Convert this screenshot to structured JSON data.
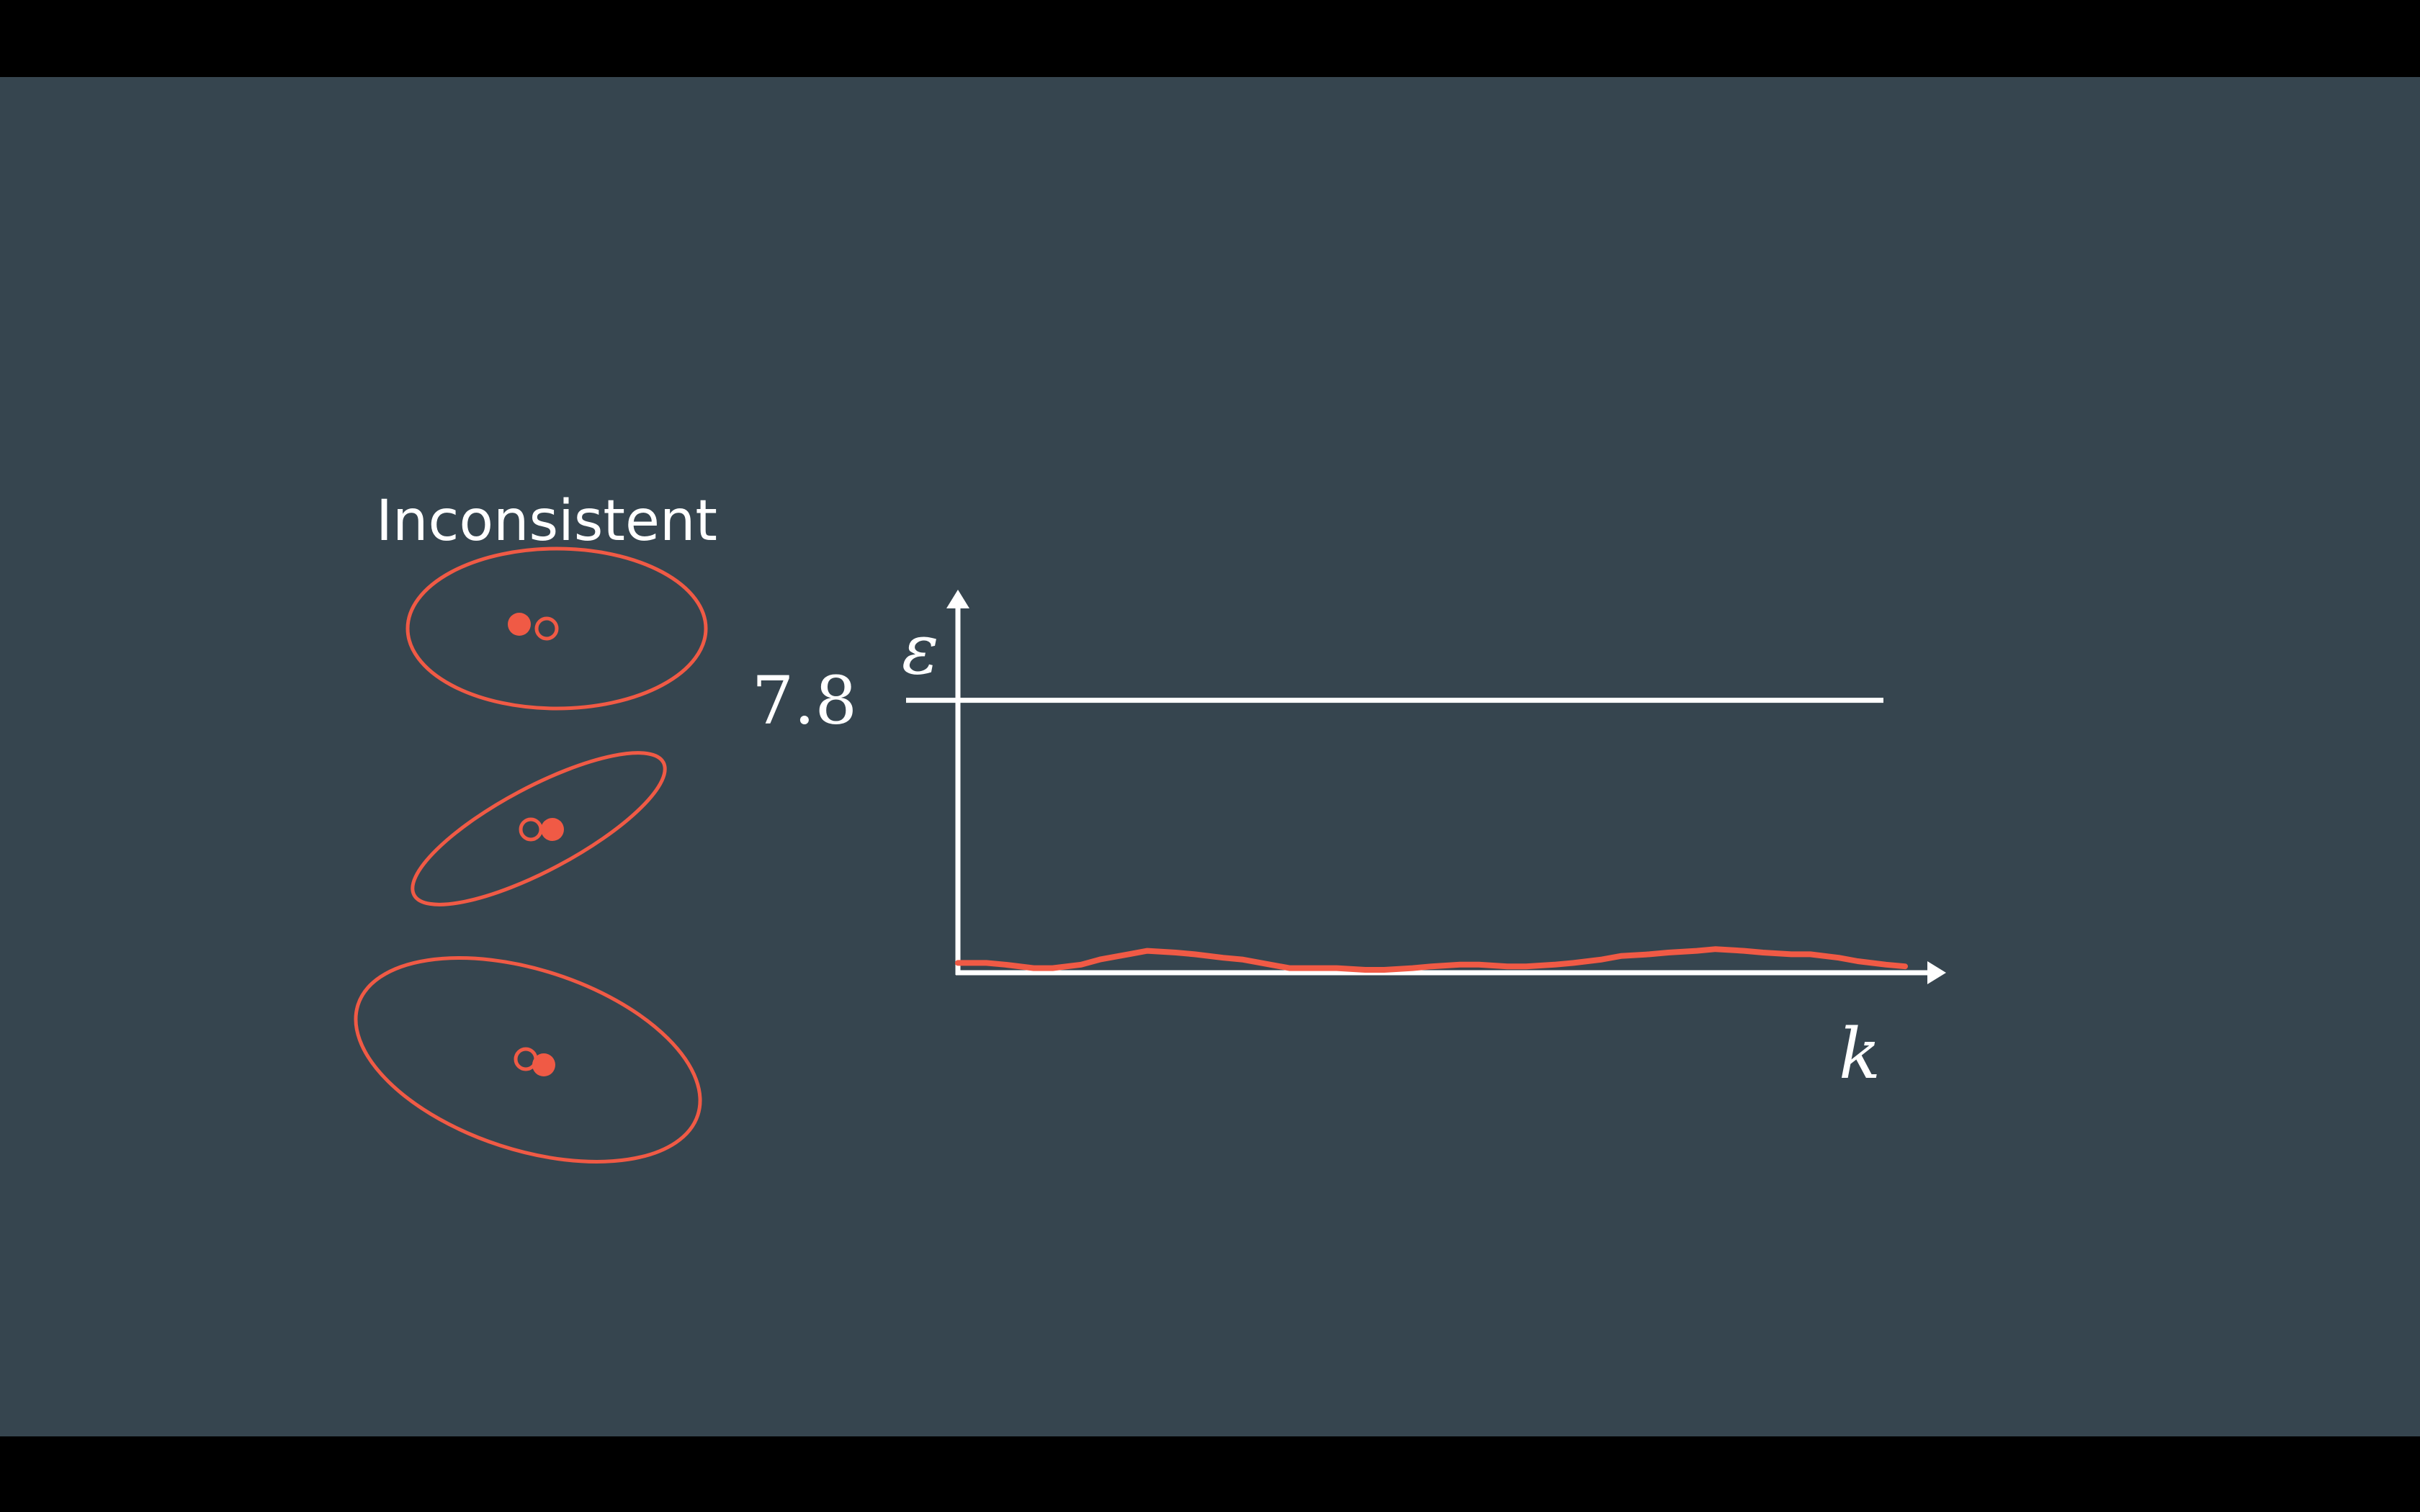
{
  "colors": {
    "background": "#36454f",
    "letterbox": "#000000",
    "accent": "#f05a45",
    "axis": "#ffffff",
    "text": "#ffffff"
  },
  "slide": {
    "heading": "Inconsistent"
  },
  "ellipses": [
    {
      "name": "ellipse-horizontal",
      "shape": "horizontal"
    },
    {
      "name": "ellipse-tilted-narrow",
      "shape": "tilted-narrow"
    },
    {
      "name": "ellipse-tilted-wide",
      "shape": "tilted-wide"
    }
  ],
  "chart_data": {
    "type": "line",
    "ylabel": "ε",
    "xlabel": "k",
    "ylim": [
      0,
      10
    ],
    "threshold": {
      "value": 7.8,
      "label": "7.8"
    },
    "series": [
      {
        "x": [
          0,
          0.03,
          0.05,
          0.08,
          0.1,
          0.13,
          0.15,
          0.18,
          0.2,
          0.23,
          0.25,
          0.28,
          0.3,
          0.33,
          0.35,
          0.38,
          0.4,
          0.43,
          0.45,
          0.48,
          0.5,
          0.53,
          0.55,
          0.58,
          0.6,
          0.63,
          0.65,
          0.68,
          0.7,
          0.73,
          0.75,
          0.78,
          0.8,
          0.83,
          0.85,
          0.88,
          0.9,
          0.93,
          0.95,
          0.98,
          1.0
        ],
        "values": [
          0.2,
          0.2,
          0.15,
          0.05,
          0.05,
          0.15,
          0.3,
          0.45,
          0.55,
          0.5,
          0.45,
          0.35,
          0.3,
          0.15,
          0.05,
          0.05,
          0.05,
          0.0,
          0.0,
          0.05,
          0.1,
          0.15,
          0.15,
          0.1,
          0.1,
          0.15,
          0.2,
          0.3,
          0.4,
          0.45,
          0.5,
          0.55,
          0.6,
          0.55,
          0.5,
          0.45,
          0.45,
          0.35,
          0.25,
          0.15,
          0.1
        ]
      }
    ]
  }
}
